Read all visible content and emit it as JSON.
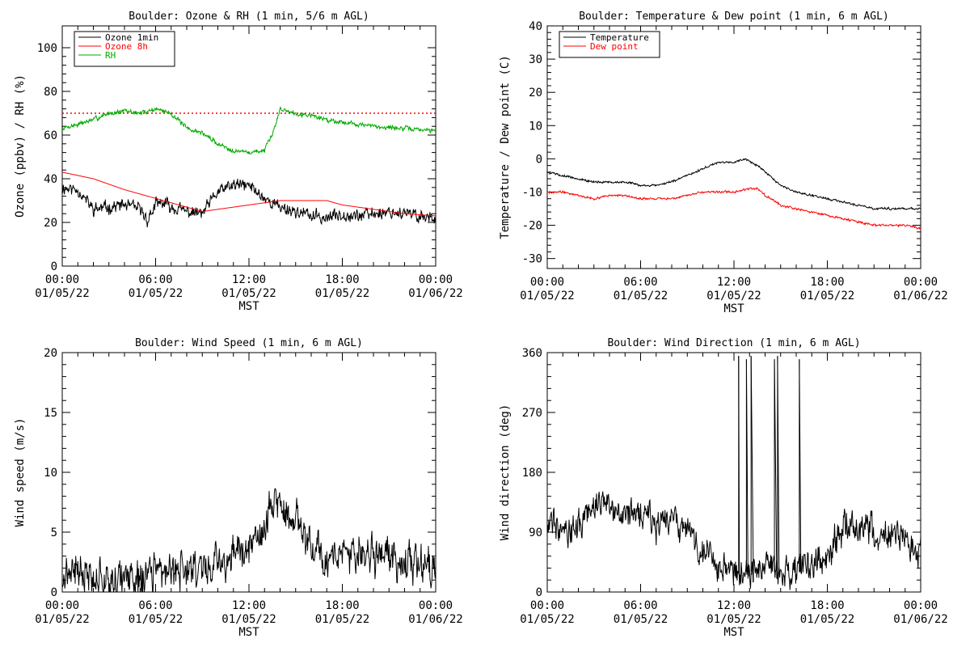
{
  "chart_data": [
    {
      "type": "line",
      "title": "Boulder: Ozone & RH (1 min, 5/6 m AGL)",
      "ylabel": "Ozone (ppbv) / RH (%)",
      "xlabel": "MST",
      "ylim": [
        0,
        110
      ],
      "yticks": [
        0,
        20,
        40,
        60,
        80,
        100
      ],
      "xlim": [
        0,
        24
      ],
      "xticks": [
        {
          "x": 0,
          "line1": "00:00",
          "line2": "01/05/22"
        },
        {
          "x": 6,
          "line1": "06:00",
          "line2": "01/05/22"
        },
        {
          "x": 12,
          "line1": "12:00",
          "line2": "01/05/22"
        },
        {
          "x": 18,
          "line1": "18:00",
          "line2": "01/05/22"
        },
        {
          "x": 24,
          "line1": "00:00",
          "line2": "01/06/22"
        }
      ],
      "legend": "top-left",
      "reference_lines": [
        {
          "y": 70,
          "color": "#ff0000",
          "style": "dotted"
        }
      ],
      "series": [
        {
          "name": "Ozone 1min",
          "color": "#000000",
          "noise": 2.2,
          "seed": 11,
          "x": [
            0,
            1,
            2,
            3,
            4,
            5,
            5.5,
            6,
            6.5,
            7,
            8,
            9,
            10,
            11,
            12,
            13,
            14,
            15,
            16,
            17,
            18,
            19,
            20,
            21,
            22,
            23,
            24
          ],
          "y": [
            36,
            35,
            26,
            27,
            28,
            26,
            21,
            28,
            29,
            27,
            25,
            24,
            34,
            37,
            37,
            31,
            27,
            25,
            23,
            22,
            24,
            23,
            24,
            25,
            24,
            23,
            22
          ]
        },
        {
          "name": "Ozone 8h",
          "color": "#ff0000",
          "noise": 0,
          "seed": 2,
          "x": [
            0,
            2,
            4,
            6,
            8,
            9,
            10,
            12,
            14,
            15,
            16,
            17,
            18,
            20,
            22,
            24
          ],
          "y": [
            43,
            40,
            35,
            31,
            27,
            25,
            26,
            28,
            30,
            30,
            30,
            30,
            28,
            26,
            24,
            23
          ]
        },
        {
          "name": "RH",
          "color": "#00aa00",
          "noise": 0.8,
          "seed": 7,
          "x": [
            0,
            2,
            3,
            4,
            5,
            6,
            7,
            8,
            9,
            10,
            11,
            12,
            13,
            13.5,
            14,
            14.5,
            15,
            16,
            17,
            18,
            20,
            22,
            24
          ],
          "y": [
            63,
            67,
            70,
            71,
            70,
            72,
            70,
            63,
            61,
            56,
            53,
            52,
            53,
            60,
            72,
            71,
            70,
            69,
            67,
            66,
            64,
            63,
            62
          ]
        }
      ]
    },
    {
      "type": "line",
      "title": "Boulder: Temperature & Dew point (1 min, 6 m AGL)",
      "ylabel": "Temperature / Dew point (C)",
      "xlabel": "MST",
      "ylim": [
        -33,
        40
      ],
      "yticks": [
        -30,
        -20,
        -10,
        0,
        10,
        20,
        30,
        40
      ],
      "xlim": [
        0,
        24
      ],
      "xticks": [
        {
          "x": 0,
          "line1": "00:00",
          "line2": "01/05/22"
        },
        {
          "x": 6,
          "line1": "06:00",
          "line2": "01/05/22"
        },
        {
          "x": 12,
          "line1": "12:00",
          "line2": "01/05/22"
        },
        {
          "x": 18,
          "line1": "18:00",
          "line2": "01/05/22"
        },
        {
          "x": 24,
          "line1": "00:00",
          "line2": "01/06/22"
        }
      ],
      "legend": "top-left",
      "series": [
        {
          "name": "Temperature",
          "color": "#000000",
          "noise": 0.25,
          "seed": 5,
          "x": [
            0,
            1,
            2,
            3,
            4,
            5,
            6,
            7,
            8,
            9,
            10,
            11,
            12,
            12.7,
            13.5,
            14,
            15,
            16,
            17,
            18,
            19,
            20,
            21,
            22,
            23,
            24
          ],
          "y": [
            -4,
            -5,
            -6,
            -7,
            -7,
            -7,
            -8,
            -8,
            -7,
            -5,
            -3,
            -1,
            -1,
            0,
            -2,
            -4,
            -8,
            -10,
            -11,
            -12,
            -13,
            -14,
            -15,
            -15,
            -15,
            -15
          ]
        },
        {
          "name": "Dew point",
          "color": "#ff0000",
          "noise": 0.25,
          "seed": 9,
          "x": [
            0,
            1,
            2,
            3,
            4,
            5,
            6,
            7,
            8,
            9,
            10,
            11,
            12,
            13,
            13.5,
            14,
            15,
            16,
            17,
            18,
            19,
            20,
            21,
            22,
            23,
            24
          ],
          "y": [
            -10,
            -10,
            -11,
            -12,
            -11,
            -11,
            -12,
            -12,
            -12,
            -11,
            -10,
            -10,
            -10,
            -9,
            -9,
            -11,
            -14,
            -15,
            -16,
            -17,
            -18,
            -19,
            -20,
            -20,
            -20,
            -21
          ]
        }
      ]
    },
    {
      "type": "line",
      "title": "Boulder: Wind Speed (1 min, 6 m AGL)",
      "ylabel": "Wind speed (m/s)",
      "xlabel": "MST",
      "ylim": [
        0,
        20
      ],
      "yticks": [
        0,
        5,
        10,
        15,
        20
      ],
      "xlim": [
        0,
        24
      ],
      "xticks": [
        {
          "x": 0,
          "line1": "00:00",
          "line2": "01/05/22"
        },
        {
          "x": 6,
          "line1": "06:00",
          "line2": "01/05/22"
        },
        {
          "x": 12,
          "line1": "12:00",
          "line2": "01/05/22"
        },
        {
          "x": 18,
          "line1": "18:00",
          "line2": "01/05/22"
        },
        {
          "x": 24,
          "line1": "00:00",
          "line2": "01/06/22"
        }
      ],
      "series": [
        {
          "name": "",
          "color": "#000000",
          "noise": 1.2,
          "seed": 21,
          "clip_min": 0,
          "x": [
            0,
            1,
            2,
            3,
            4,
            5,
            6,
            7,
            8,
            9,
            10,
            11,
            12,
            13,
            13.7,
            14.3,
            15,
            16,
            17,
            18,
            19,
            20,
            21,
            22,
            23,
            24
          ],
          "y": [
            1.5,
            1.8,
            1.5,
            1.0,
            1.0,
            1.2,
            1.5,
            1.8,
            2.0,
            2.2,
            2.5,
            3.0,
            3.5,
            5.5,
            8.0,
            6.5,
            6.0,
            4.0,
            3.0,
            3.0,
            3.0,
            3.2,
            3.0,
            2.5,
            2.0,
            1.8
          ]
        }
      ]
    },
    {
      "type": "line",
      "title": "Boulder: Wind Direction (1 min, 6 m AGL)",
      "ylabel": "Wind direction (deg)",
      "xlabel": "MST",
      "ylim": [
        0,
        360
      ],
      "yticks": [
        0,
        90,
        180,
        270,
        360
      ],
      "xlim": [
        0,
        24
      ],
      "xticks": [
        {
          "x": 0,
          "line1": "00:00",
          "line2": "01/05/22"
        },
        {
          "x": 6,
          "line1": "06:00",
          "line2": "01/05/22"
        },
        {
          "x": 12,
          "line1": "12:00",
          "line2": "01/05/22"
        },
        {
          "x": 18,
          "line1": "18:00",
          "line2": "01/05/22"
        },
        {
          "x": 24,
          "line1": "00:00",
          "line2": "01/06/22"
        }
      ],
      "series": [
        {
          "name": "",
          "color": "#000000",
          "noise": 18,
          "seed": 33,
          "clip_min": 0,
          "clip_max": 360,
          "x": [
            0,
            1,
            1.5,
            2,
            3,
            4,
            5,
            6,
            6.5,
            7,
            8,
            9,
            10,
            11,
            12,
            13,
            14,
            15,
            16,
            17,
            18,
            18.5,
            19,
            20,
            21,
            22,
            23,
            24
          ],
          "y": [
            100,
            110,
            90,
            100,
            130,
            140,
            120,
            110,
            120,
            90,
            110,
            90,
            60,
            40,
            30,
            30,
            40,
            30,
            30,
            40,
            60,
            80,
            100,
            100,
            90,
            90,
            80,
            50
          ]
        }
      ],
      "spikes": [
        {
          "x": 12.3,
          "y": 355
        },
        {
          "x": 12.35,
          "y": 10
        },
        {
          "x": 12.8,
          "y": 350
        },
        {
          "x": 12.9,
          "y": 20
        },
        {
          "x": 13.1,
          "y": 355
        },
        {
          "x": 13.25,
          "y": 15
        },
        {
          "x": 14.6,
          "y": 350
        },
        {
          "x": 14.75,
          "y": 20
        },
        {
          "x": 14.8,
          "y": 355
        },
        {
          "x": 14.9,
          "y": 30
        },
        {
          "x": 16.2,
          "y": 350
        },
        {
          "x": 16.3,
          "y": 30
        }
      ]
    }
  ]
}
